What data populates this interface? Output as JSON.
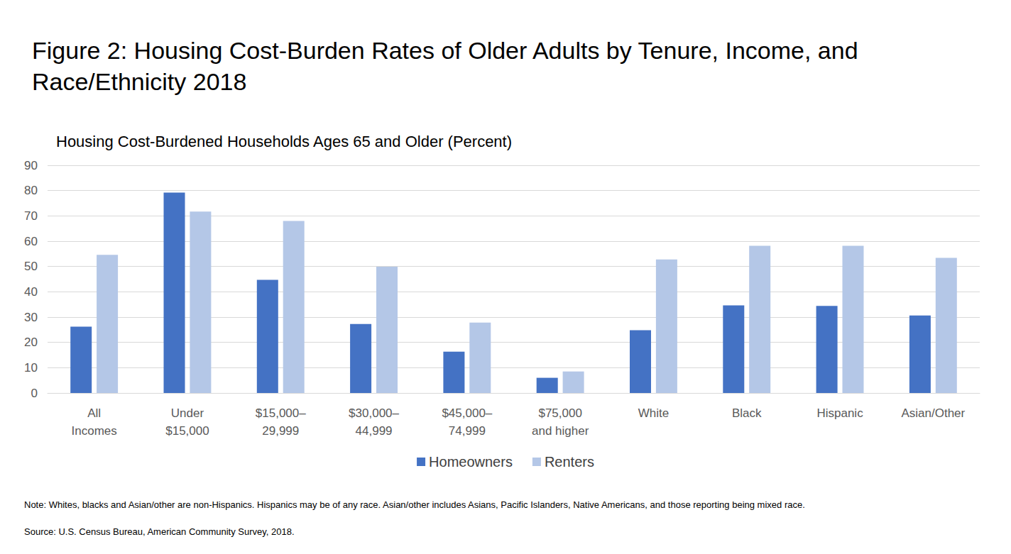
{
  "chart_data": {
    "type": "bar",
    "title": "Figure 2: Housing Cost-Burden Rates of Older Adults by Tenure, Income, and Race/Ethnicity 2018",
    "subtitle": "Housing Cost-Burdened Households Ages 65 and Older (Percent)",
    "note": "Note: Whites, blacks and Asian/other are non-Hispanics. Hispanics may be of any race. Asian/other includes Asians, Pacific Islanders, Native Americans, and those reporting being mixed race.",
    "source": "Source: U.S. Census Bureau, American Community Survey, 2018.",
    "categories": [
      "All\nIncomes",
      "Under\n$15,000",
      "$15,000–\n29,999",
      "$30,000–\n44,999",
      "$45,000–\n74,999",
      "$75,000\nand higher",
      "White",
      "Black",
      "Hispanic",
      "Asian/Other"
    ],
    "series": [
      {
        "name": "Homeowners",
        "color": "#4472c4",
        "values": [
          26.2,
          79.2,
          44.7,
          27.3,
          16.3,
          6.0,
          24.8,
          34.6,
          34.4,
          30.6
        ]
      },
      {
        "name": "Renters",
        "color": "#b4c7e7",
        "values": [
          54.6,
          71.7,
          68.0,
          49.9,
          27.8,
          8.5,
          52.8,
          58.2,
          58.2,
          53.4
        ]
      }
    ],
    "ylim": [
      0,
      90
    ],
    "yticks": [
      0,
      10,
      20,
      30,
      40,
      50,
      60,
      70,
      80,
      90
    ],
    "grid": true,
    "legend": "bottom"
  }
}
